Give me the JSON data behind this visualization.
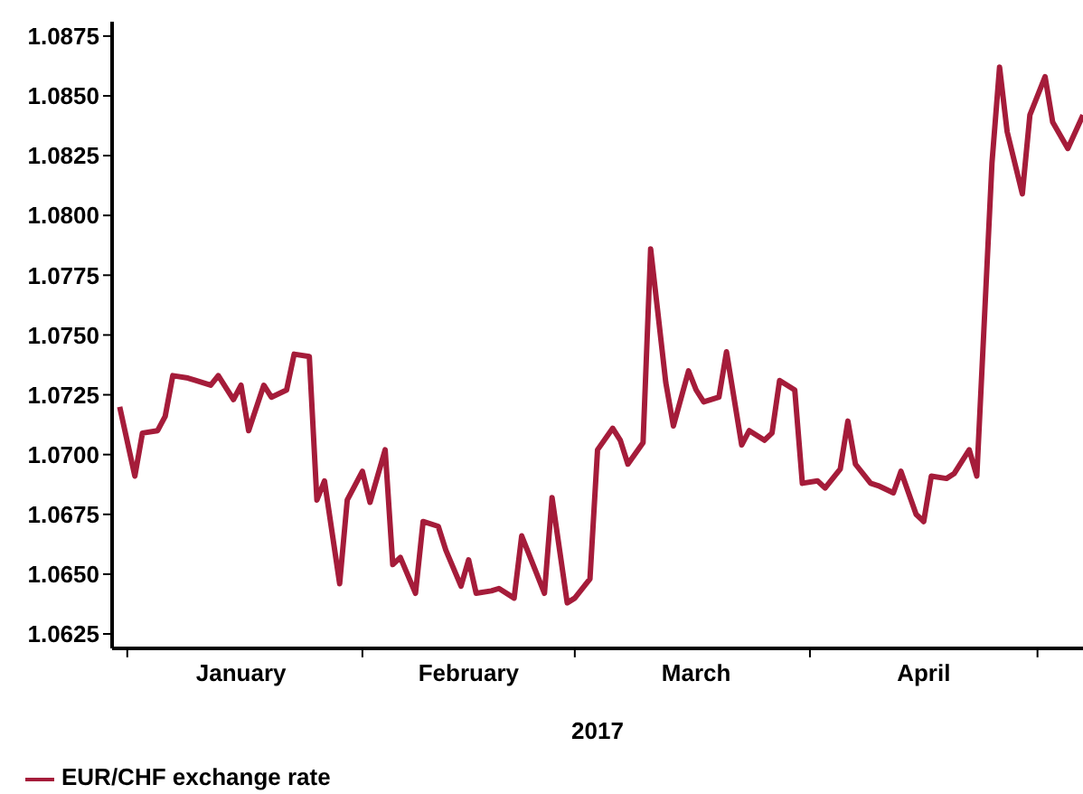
{
  "chart_data": {
    "type": "line",
    "xlabel": "2017",
    "x": [
      "2016-12-31",
      "2017-01-02",
      "2017-01-03",
      "2017-01-05",
      "2017-01-06",
      "2017-01-07",
      "2017-01-09",
      "2017-01-10",
      "2017-01-12",
      "2017-01-13",
      "2017-01-15",
      "2017-01-16",
      "2017-01-17",
      "2017-01-19",
      "2017-01-20",
      "2017-01-22",
      "2017-01-23",
      "2017-01-25",
      "2017-01-26",
      "2017-01-27",
      "2017-01-29",
      "2017-01-30",
      "2017-02-01",
      "2017-02-02",
      "2017-02-04",
      "2017-02-05",
      "2017-02-06",
      "2017-02-08",
      "2017-02-09",
      "2017-02-11",
      "2017-02-12",
      "2017-02-14",
      "2017-02-15",
      "2017-02-16",
      "2017-02-18",
      "2017-02-19",
      "2017-02-21",
      "2017-02-22",
      "2017-02-24",
      "2017-02-25",
      "2017-02-26",
      "2017-02-28",
      "2017-03-01",
      "2017-03-03",
      "2017-03-04",
      "2017-03-06",
      "2017-03-07",
      "2017-03-08",
      "2017-03-10",
      "2017-03-11",
      "2017-03-13",
      "2017-03-14",
      "2017-03-16",
      "2017-03-17",
      "2017-03-18",
      "2017-03-20",
      "2017-03-21",
      "2017-03-23",
      "2017-03-24",
      "2017-03-26",
      "2017-03-27",
      "2017-03-28",
      "2017-03-30",
      "2017-03-31",
      "2017-04-02",
      "2017-04-03",
      "2017-04-05",
      "2017-04-06",
      "2017-04-07",
      "2017-04-09",
      "2017-04-10",
      "2017-04-12",
      "2017-04-13",
      "2017-04-15",
      "2017-04-16",
      "2017-04-17",
      "2017-04-19",
      "2017-04-20",
      "2017-04-22",
      "2017-04-23",
      "2017-04-25",
      "2017-04-26",
      "2017-04-27",
      "2017-04-29",
      "2017-04-30",
      "2017-05-02",
      "2017-05-03",
      "2017-05-05",
      "2017-05-06",
      "2017-05-07"
    ],
    "series": [
      {
        "name": "EUR/CHF exchange rate",
        "color": "#a51c3a",
        "values": [
          1.072,
          1.0691,
          1.0709,
          1.071,
          1.0716,
          1.0733,
          1.0732,
          1.0731,
          1.0729,
          1.0733,
          1.0723,
          1.0729,
          1.071,
          1.0729,
          1.0724,
          1.0727,
          1.0742,
          1.0741,
          1.0681,
          1.0689,
          1.0646,
          1.0681,
          1.0693,
          1.068,
          1.0702,
          1.0654,
          1.0657,
          1.0642,
          1.0672,
          1.067,
          1.066,
          1.0645,
          1.0656,
          1.0642,
          1.0643,
          1.0644,
          1.064,
          1.0666,
          1.065,
          1.0642,
          1.0682,
          1.0638,
          1.064,
          1.0648,
          1.0702,
          1.0711,
          1.0706,
          1.0696,
          1.0705,
          1.0786,
          1.073,
          1.0712,
          1.0735,
          1.0727,
          1.0722,
          1.0724,
          1.0743,
          1.0704,
          1.071,
          1.0706,
          1.0709,
          1.0731,
          1.0727,
          1.0688,
          1.0689,
          1.0686,
          1.0694,
          1.0714,
          1.0696,
          1.0688,
          1.0687,
          1.0684,
          1.0693,
          1.0675,
          1.0672,
          1.0691,
          1.069,
          1.0692,
          1.0702,
          1.0691,
          1.0822,
          1.0862,
          1.0835,
          1.0809,
          1.0842,
          1.0858,
          1.0839,
          1.0828,
          1.0835,
          1.0842
        ]
      }
    ],
    "xlim": [
      "2016-12-30",
      "2017-05-07"
    ],
    "xticks": [
      {
        "value": "2017-01-01",
        "label": null
      },
      {
        "value": "2017-01-16",
        "label": "January"
      },
      {
        "value": "2017-02-01",
        "label": null
      },
      {
        "value": "2017-02-15",
        "label": "February"
      },
      {
        "value": "2017-03-01",
        "label": null
      },
      {
        "value": "2017-03-17",
        "label": "March"
      },
      {
        "value": "2017-04-01",
        "label": null
      },
      {
        "value": "2017-04-16",
        "label": "April"
      },
      {
        "value": "2017-05-01",
        "label": null
      }
    ],
    "ylim": [
      1.0619,
      1.0881
    ],
    "yticks": [
      {
        "value": 1.0625,
        "label": "1.0625"
      },
      {
        "value": 1.065,
        "label": "1.0650"
      },
      {
        "value": 1.0675,
        "label": "1.0675"
      },
      {
        "value": 1.07,
        "label": "1.0700"
      },
      {
        "value": 1.0725,
        "label": "1.0725"
      },
      {
        "value": 1.075,
        "label": "1.0750"
      },
      {
        "value": 1.0775,
        "label": "1.0775"
      },
      {
        "value": 1.08,
        "label": "1.0800"
      },
      {
        "value": 1.0825,
        "label": "1.0825"
      },
      {
        "value": 1.085,
        "label": "1.0850"
      },
      {
        "value": 1.0875,
        "label": "1.0875"
      }
    ],
    "grid": false,
    "legend": "bottom left",
    "marker": "none",
    "line_style": "solid"
  }
}
